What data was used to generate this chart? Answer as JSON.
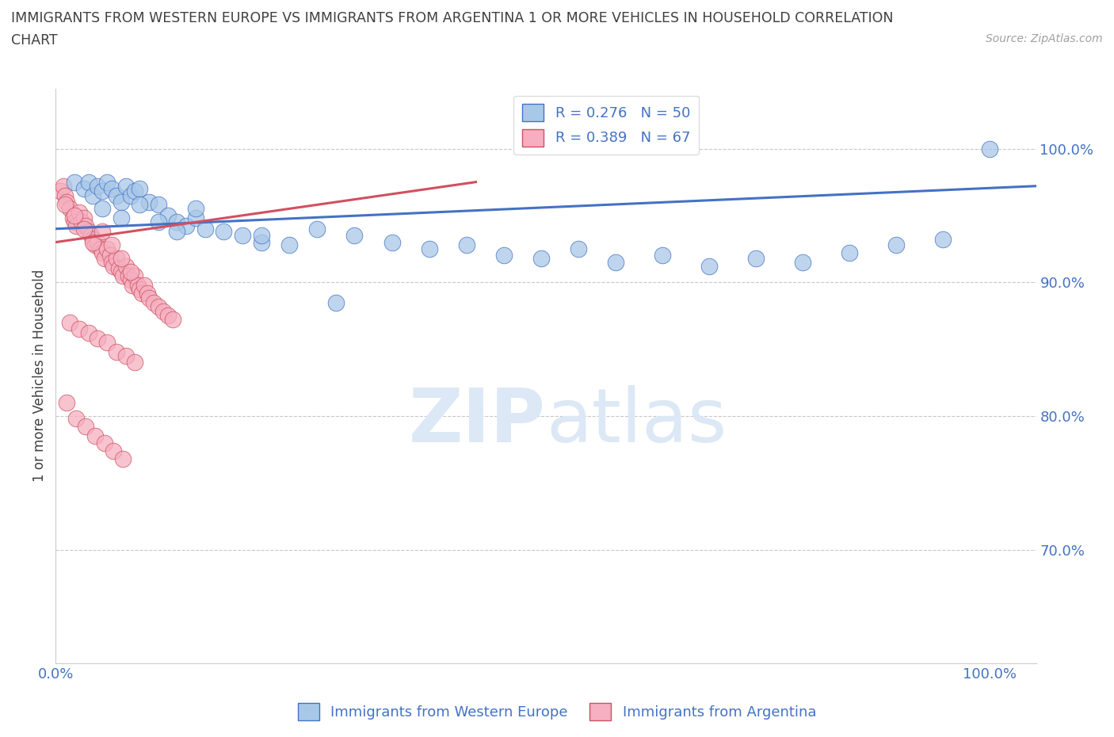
{
  "title_line1": "IMMIGRANTS FROM WESTERN EUROPE VS IMMIGRANTS FROM ARGENTINA 1 OR MORE VEHICLES IN HOUSEHOLD CORRELATION",
  "title_line2": "CHART",
  "source": "Source: ZipAtlas.com",
  "ylabel": "1 or more Vehicles in Household",
  "xlim": [
    0.0,
    1.05
  ],
  "ylim": [
    0.615,
    1.045
  ],
  "R_blue": 0.276,
  "N_blue": 50,
  "R_pink": 0.389,
  "N_pink": 67,
  "legend_labels": [
    "Immigrants from Western Europe",
    "Immigrants from Argentina"
  ],
  "blue_color": "#a8c8e8",
  "pink_color": "#f5afc0",
  "line_blue": "#4472c4",
  "line_pink": "#d05060",
  "watermark_zip": "ZIP",
  "watermark_atlas": "atlas",
  "watermark_color": "#dce8f5",
  "grid_color": "#c8c8c8",
  "background_color": "#ffffff",
  "title_color": "#404040",
  "tick_label_color": "#4472c4",
  "ytick_positions": [
    0.7,
    0.8,
    0.9,
    1.0
  ],
  "ytick_labels": [
    "70.0%",
    "80.0%",
    "90.0%",
    "100.0%"
  ],
  "xtick_positions": [
    0.0,
    1.0
  ],
  "xtick_labels": [
    "0.0%",
    "100.0%"
  ],
  "blue_x": [
    0.02,
    0.03,
    0.035,
    0.04,
    0.045,
    0.05,
    0.055,
    0.06,
    0.065,
    0.07,
    0.075,
    0.08,
    0.085,
    0.09,
    0.1,
    0.11,
    0.12,
    0.13,
    0.14,
    0.15,
    0.16,
    0.18,
    0.2,
    0.22,
    0.25,
    0.28,
    0.32,
    0.36,
    0.4,
    0.44,
    0.48,
    0.52,
    0.56,
    0.6,
    0.65,
    0.7,
    0.75,
    0.8,
    0.85,
    0.9,
    0.95,
    1.0,
    0.05,
    0.07,
    0.09,
    0.11,
    0.13,
    0.15,
    0.22,
    0.3
  ],
  "blue_y": [
    0.975,
    0.97,
    0.975,
    0.965,
    0.972,
    0.968,
    0.975,
    0.97,
    0.965,
    0.96,
    0.972,
    0.965,
    0.968,
    0.97,
    0.96,
    0.958,
    0.95,
    0.945,
    0.942,
    0.948,
    0.94,
    0.938,
    0.935,
    0.93,
    0.928,
    0.94,
    0.935,
    0.93,
    0.925,
    0.928,
    0.92,
    0.918,
    0.925,
    0.915,
    0.92,
    0.912,
    0.918,
    0.915,
    0.922,
    0.928,
    0.932,
    1.0,
    0.955,
    0.948,
    0.958,
    0.945,
    0.938,
    0.955,
    0.935,
    0.885
  ],
  "pink_x": [
    0.005,
    0.008,
    0.01,
    0.012,
    0.015,
    0.018,
    0.02,
    0.022,
    0.025,
    0.028,
    0.03,
    0.032,
    0.035,
    0.038,
    0.04,
    0.042,
    0.045,
    0.048,
    0.05,
    0.052,
    0.055,
    0.058,
    0.06,
    0.062,
    0.065,
    0.068,
    0.07,
    0.072,
    0.075,
    0.078,
    0.08,
    0.082,
    0.085,
    0.088,
    0.09,
    0.092,
    0.095,
    0.098,
    0.1,
    0.105,
    0.11,
    0.115,
    0.12,
    0.125,
    0.01,
    0.02,
    0.03,
    0.04,
    0.05,
    0.06,
    0.07,
    0.08,
    0.015,
    0.025,
    0.035,
    0.045,
    0.055,
    0.065,
    0.075,
    0.085,
    0.012,
    0.022,
    0.032,
    0.042,
    0.052,
    0.062,
    0.072
  ],
  "pink_y": [
    0.968,
    0.972,
    0.965,
    0.96,
    0.955,
    0.948,
    0.945,
    0.942,
    0.952,
    0.945,
    0.948,
    0.942,
    0.938,
    0.935,
    0.932,
    0.928,
    0.93,
    0.925,
    0.922,
    0.918,
    0.925,
    0.92,
    0.915,
    0.912,
    0.918,
    0.91,
    0.908,
    0.905,
    0.912,
    0.905,
    0.902,
    0.898,
    0.905,
    0.898,
    0.895,
    0.892,
    0.898,
    0.892,
    0.888,
    0.885,
    0.882,
    0.878,
    0.875,
    0.872,
    0.958,
    0.95,
    0.94,
    0.93,
    0.938,
    0.928,
    0.918,
    0.908,
    0.87,
    0.865,
    0.862,
    0.858,
    0.855,
    0.848,
    0.845,
    0.84,
    0.81,
    0.798,
    0.792,
    0.785,
    0.78,
    0.774,
    0.768
  ],
  "blue_line_x": [
    0.0,
    1.05
  ],
  "blue_line_y": [
    0.94,
    0.972
  ],
  "pink_line_x": [
    0.0,
    0.45
  ],
  "pink_line_y": [
    0.93,
    0.975
  ]
}
